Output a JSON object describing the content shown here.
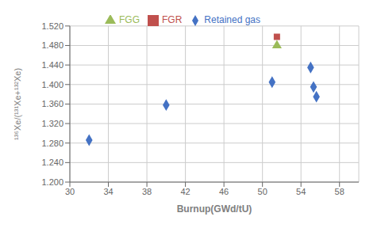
{
  "chart_data": {
    "type": "scatter",
    "xlabel": "Burnup(GWd/tU)",
    "ylabel": "¹³⁶Xe/(¹³¹Xe+¹³²Xe)",
    "series": [
      {
        "name": "Retained gas",
        "color": "#4472C4",
        "marker": "diamond",
        "x": [
          32.0,
          40.0,
          51.0,
          55.0,
          55.3,
          55.6
        ],
        "values": [
          1.286,
          1.358,
          1.405,
          1.435,
          1.395,
          1.375
        ]
      },
      {
        "name": "FGR",
        "color": "#C0504D",
        "marker": "square",
        "x": [
          51.5
        ],
        "values": [
          1.498
        ]
      },
      {
        "name": "FGG",
        "color": "#9BBB59",
        "marker": "triangle",
        "x": [
          51.5
        ],
        "values": [
          1.48
        ]
      }
    ],
    "xlim": [
      30,
      60
    ],
    "ylim": [
      1.2,
      1.52
    ],
    "xticks": [
      30,
      34,
      38,
      42,
      46,
      50,
      54,
      58
    ],
    "yticks": [
      {
        "value": 1.2,
        "label": "1.200"
      },
      {
        "value": 1.24,
        "label": "1.240"
      },
      {
        "value": 1.28,
        "label": "1.280"
      },
      {
        "value": 1.32,
        "label": "1.320"
      },
      {
        "value": 1.36,
        "label": "1.360"
      },
      {
        "value": 1.4,
        "label": "1.400"
      },
      {
        "value": 1.44,
        "label": "1.440"
      },
      {
        "value": 1.48,
        "label": "1.480"
      },
      {
        "value": 1.52,
        "label": "1.520"
      }
    ],
    "grid": true,
    "legend": "top"
  }
}
